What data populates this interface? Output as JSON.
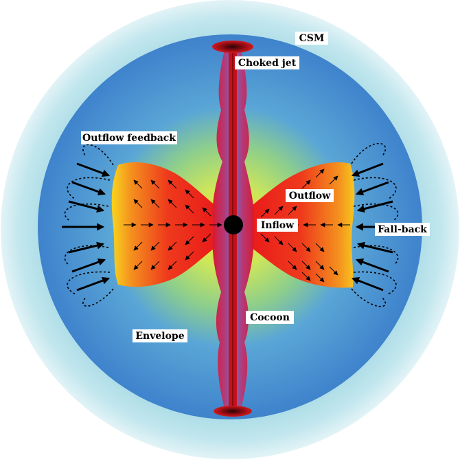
{
  "labels": {
    "csm": "CSM",
    "choked_jet": "Choked jet",
    "outflow_feedback": "Outflow feedback",
    "outflow": "Outflow",
    "inflow": "Inflow",
    "fall_back": "Fall-back",
    "cocoon": "Cocoon",
    "envelope": "Envelope"
  },
  "colors": {
    "csm_halo": "#b9e3ea",
    "envelope_outer": "#3f86cf",
    "envelope_mid": "#5aa8d8",
    "envelope_inner": "#d7e85a",
    "hot_core": "#e8141a",
    "hot_edge": "#f7c81e",
    "jet": "#c8141a",
    "black_hole": "#000000"
  }
}
